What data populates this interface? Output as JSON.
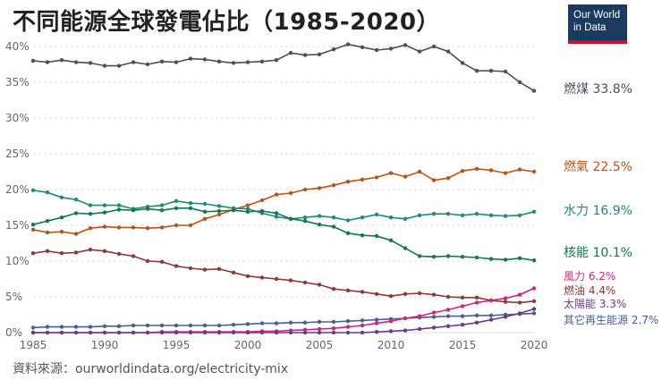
{
  "header": {
    "title": "不同能源全球發電佔比（1985-2020）",
    "logo_line1": "Our World",
    "logo_line2": "in Data"
  },
  "footer": {
    "source": "資料來源：ourworldindata.org/electricity-mix"
  },
  "colors": {
    "coal": "#4a4f5e",
    "gas": "#b8541b",
    "hydro": "#1e8a78",
    "nuclear": "#14784a",
    "wind": "#d0247c",
    "oil": "#8a3a3a",
    "solar": "#6a3a8a",
    "other": "#4a6090",
    "logo_bg": "#1a3a5e",
    "logo_accent": "#c8102e",
    "grid": "#dddddd"
  },
  "chart_data": {
    "type": "line",
    "title": "不同能源全球發電佔比（1985-2020）",
    "xlabel": "",
    "ylabel": "",
    "xlim": [
      1985,
      2020
    ],
    "ylim": [
      0,
      40
    ],
    "grid": true,
    "x_ticks": [
      1985,
      1990,
      1995,
      2000,
      2005,
      2010,
      2015,
      2020
    ],
    "y_ticks": [
      0,
      5,
      10,
      15,
      20,
      25,
      30,
      35,
      40
    ],
    "y_tick_labels": [
      "0%",
      "5%",
      "10%",
      "15%",
      "20%",
      "25%",
      "30%",
      "35%",
      "40%"
    ],
    "x": [
      1985,
      1986,
      1987,
      1988,
      1989,
      1990,
      1991,
      1992,
      1993,
      1994,
      1995,
      1996,
      1997,
      1998,
      1999,
      2000,
      2001,
      2002,
      2003,
      2004,
      2005,
      2006,
      2007,
      2008,
      2009,
      2010,
      2011,
      2012,
      2013,
      2014,
      2015,
      2016,
      2017,
      2018,
      2019,
      2020
    ],
    "series": [
      {
        "key": "coal",
        "name": "燃煤",
        "end_label": "燃煤 33.8%",
        "values": [
          38.0,
          37.8,
          38.1,
          37.8,
          37.7,
          37.3,
          37.3,
          37.8,
          37.5,
          37.9,
          37.8,
          38.3,
          38.2,
          37.9,
          37.7,
          37.8,
          37.9,
          38.1,
          39.1,
          38.8,
          38.9,
          39.6,
          40.3,
          39.9,
          39.5,
          39.7,
          40.2,
          39.3,
          40.0,
          39.3,
          37.7,
          36.6,
          36.6,
          36.5,
          35.0,
          33.8
        ]
      },
      {
        "key": "gas",
        "name": "燃氣",
        "end_label": "燃氣 22.5%",
        "values": [
          14.4,
          14.0,
          14.1,
          13.8,
          14.6,
          14.8,
          14.7,
          14.7,
          14.6,
          14.7,
          15.0,
          15.0,
          15.9,
          16.5,
          17.2,
          17.8,
          18.5,
          19.3,
          19.5,
          20.0,
          20.2,
          20.6,
          21.1,
          21.4,
          21.7,
          22.3,
          21.8,
          22.5,
          21.3,
          21.6,
          22.6,
          22.9,
          22.7,
          22.3,
          22.8,
          22.5
        ]
      },
      {
        "key": "hydro",
        "name": "水力",
        "end_label": "水力 16.9%",
        "values": [
          19.9,
          19.6,
          18.9,
          18.6,
          17.8,
          17.8,
          17.8,
          17.3,
          17.6,
          17.8,
          18.4,
          18.1,
          18.0,
          17.7,
          17.4,
          17.3,
          16.7,
          16.2,
          15.9,
          16.1,
          16.3,
          16.1,
          15.7,
          16.1,
          16.5,
          16.1,
          15.9,
          16.4,
          16.6,
          16.6,
          16.4,
          16.6,
          16.4,
          16.3,
          16.4,
          16.9
        ]
      },
      {
        "key": "nuclear",
        "name": "核能",
        "end_label": "核能 10.1%",
        "values": [
          15.1,
          15.6,
          16.1,
          16.7,
          16.6,
          16.8,
          17.2,
          17.1,
          17.3,
          17.1,
          17.4,
          17.4,
          16.9,
          17.0,
          17.1,
          16.9,
          17.0,
          16.7,
          15.9,
          15.6,
          15.1,
          14.8,
          13.9,
          13.6,
          13.5,
          12.9,
          11.8,
          10.7,
          10.6,
          10.7,
          10.6,
          10.5,
          10.3,
          10.2,
          10.4,
          10.1
        ]
      },
      {
        "key": "oil",
        "name": "燃油",
        "end_label": "燃油 4.4%",
        "values": [
          11.1,
          11.4,
          11.1,
          11.2,
          11.6,
          11.4,
          11.0,
          10.7,
          10.0,
          9.9,
          9.3,
          9.0,
          8.8,
          8.9,
          8.4,
          7.9,
          7.7,
          7.5,
          7.3,
          7.0,
          6.7,
          6.1,
          5.9,
          5.7,
          5.4,
          5.1,
          5.4,
          5.5,
          5.3,
          5.0,
          4.9,
          4.9,
          4.5,
          4.3,
          4.2,
          4.4
        ]
      },
      {
        "key": "other",
        "name": "其它再生能源",
        "end_label": "其它再生能源 2.7%",
        "values": [
          0.7,
          0.8,
          0.8,
          0.8,
          0.8,
          0.9,
          0.9,
          1.0,
          1.0,
          1.0,
          1.0,
          1.0,
          1.0,
          1.0,
          1.1,
          1.2,
          1.3,
          1.3,
          1.4,
          1.4,
          1.5,
          1.5,
          1.6,
          1.7,
          1.8,
          1.9,
          2.0,
          2.1,
          2.2,
          2.3,
          2.3,
          2.4,
          2.4,
          2.5,
          2.6,
          2.7
        ]
      },
      {
        "key": "wind",
        "name": "風力",
        "end_label": "風力 6.2%",
        "values": [
          0.0,
          0.0,
          0.0,
          0.0,
          0.0,
          0.0,
          0.0,
          0.0,
          0.0,
          0.1,
          0.1,
          0.1,
          0.1,
          0.1,
          0.1,
          0.1,
          0.2,
          0.2,
          0.3,
          0.4,
          0.5,
          0.6,
          0.8,
          1.0,
          1.3,
          1.6,
          2.0,
          2.3,
          2.8,
          3.2,
          3.7,
          4.2,
          4.5,
          4.8,
          5.3,
          6.2
        ]
      },
      {
        "key": "solar",
        "name": "太陽能",
        "end_label": "太陽能 3.3%",
        "values": [
          0.0,
          0.0,
          0.0,
          0.0,
          0.0,
          0.0,
          0.0,
          0.0,
          0.0,
          0.0,
          0.0,
          0.0,
          0.0,
          0.0,
          0.0,
          0.0,
          0.0,
          0.0,
          0.0,
          0.0,
          0.0,
          0.0,
          0.0,
          0.0,
          0.1,
          0.2,
          0.3,
          0.5,
          0.7,
          0.9,
          1.1,
          1.4,
          1.8,
          2.2,
          2.7,
          3.3
        ]
      }
    ]
  }
}
